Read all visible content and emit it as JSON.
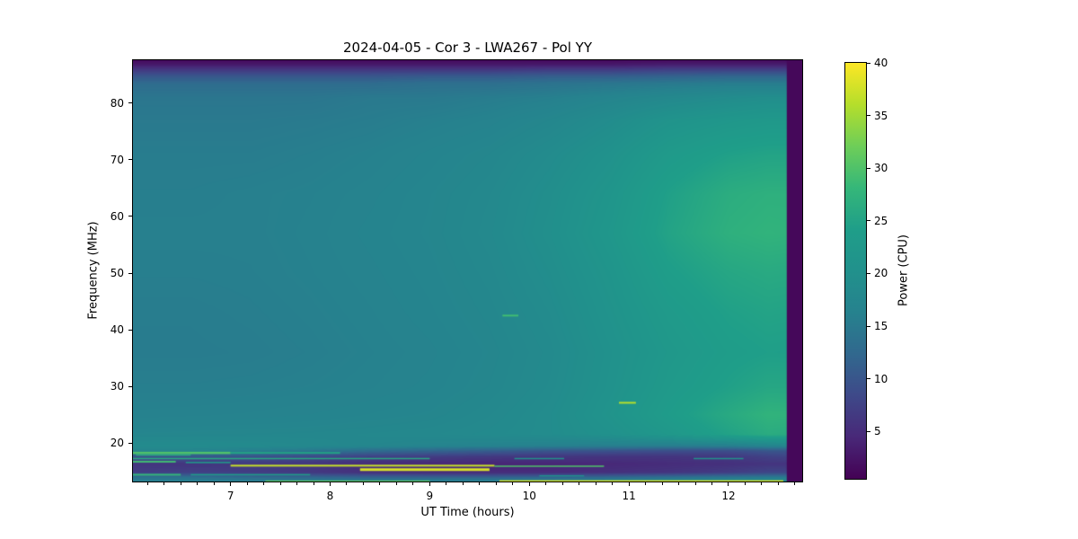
{
  "chart_data": {
    "type": "heatmap",
    "title": "2024-04-05 - Cor 3 - LWA267 - Pol YY",
    "xlabel": "UT Time (hours)",
    "ylabel": "Frequency (MHz)",
    "colorbar_label": "Power (CPU)",
    "colormap": "viridis",
    "vmin": 0.5,
    "vmax": 40,
    "x_range_hours": [
      6.02,
      12.74
    ],
    "y_range_mhz": [
      13.2,
      87.6
    ],
    "x_ticks": [
      7,
      8,
      9,
      10,
      11,
      12
    ],
    "x_minor_tick_interval_hours": 0.1667,
    "y_ticks": [
      20,
      30,
      40,
      50,
      60,
      70,
      80
    ],
    "colorbar_ticks": [
      5,
      10,
      15,
      20,
      25,
      30,
      35,
      40
    ],
    "legend": "none",
    "grid_lines": "off",
    "grid": {
      "t": [
        6.0,
        6.6,
        7.2,
        7.8,
        8.4,
        9.0,
        9.6,
        10.2,
        10.8,
        11.4,
        12.0,
        12.4,
        12.74
      ],
      "f": [
        87.6,
        86.8,
        86.0,
        84.8,
        83.5,
        81.0,
        77.0,
        71.0,
        64.0,
        57.0,
        50.0,
        43.0,
        36.0,
        30.0,
        25.0,
        21.5,
        19.5,
        18.6,
        17.6,
        16.3,
        14.8,
        13.9,
        13.2
      ],
      "values": [
        [
          1.5,
          1.5,
          1.5,
          1.5,
          1.5,
          1.5,
          1.5,
          1.5,
          1.5,
          1.5,
          1.5,
          1.5,
          1.5
        ],
        [
          3,
          3,
          3,
          3,
          3,
          3,
          3,
          3,
          3,
          3.5,
          3.5,
          3.5,
          3.5
        ],
        [
          6,
          6,
          6,
          6,
          6,
          6,
          6,
          6.5,
          6.5,
          7,
          7,
          7,
          7
        ],
        [
          10,
          10,
          10,
          10,
          10,
          10.5,
          10.5,
          11,
          11,
          11.5,
          12,
          12,
          12
        ],
        [
          13,
          13,
          13,
          13,
          13,
          13.5,
          13.5,
          14,
          14.5,
          15,
          15.5,
          15.5,
          15.5
        ],
        [
          14.5,
          14.5,
          14.5,
          14.5,
          15,
          15,
          15.5,
          16,
          17,
          18,
          19,
          19.5,
          19.5
        ],
        [
          15,
          15,
          15,
          15.2,
          15.5,
          16,
          16.5,
          17.5,
          19,
          21,
          22,
          22.5,
          22.5
        ],
        [
          15.5,
          15.5,
          15.5,
          15.8,
          16.2,
          16.8,
          17.5,
          18.8,
          20.5,
          23,
          24.5,
          25,
          25
        ],
        [
          15.8,
          15.8,
          16,
          16.2,
          16.6,
          17.2,
          18,
          19.5,
          21.5,
          24.5,
          26.5,
          27,
          27
        ],
        [
          16,
          16,
          16,
          16.3,
          16.8,
          17.3,
          18.2,
          19.8,
          22,
          25,
          27,
          27.5,
          27.3
        ],
        [
          15.8,
          15.8,
          15.9,
          16.2,
          16.6,
          17.1,
          17.9,
          19.3,
          21.3,
          24,
          25.5,
          26,
          25.8
        ],
        [
          15.5,
          15.5,
          15.7,
          16,
          16.4,
          16.9,
          17.6,
          18.8,
          20.8,
          23,
          24.5,
          25,
          24.8
        ],
        [
          15.4,
          15.4,
          15.5,
          15.8,
          16.2,
          16.6,
          17.3,
          18.4,
          20.3,
          22.3,
          23.8,
          24.3,
          24.2
        ],
        [
          15.8,
          15.8,
          15.9,
          16.1,
          16.4,
          16.8,
          17.5,
          18.6,
          20.5,
          22.8,
          24.5,
          25.5,
          25.5
        ],
        [
          16.3,
          16.4,
          16.5,
          16.7,
          17,
          17.3,
          18,
          19,
          21,
          23.5,
          26,
          27.5,
          27.3
        ],
        [
          17.3,
          17.4,
          17.5,
          17.6,
          17.8,
          18,
          18.4,
          19,
          20.3,
          22.3,
          24.8,
          26.3,
          26
        ],
        [
          18.8,
          18.8,
          18.5,
          18,
          17.5,
          17,
          16.6,
          16.2,
          15.8,
          15.6,
          16,
          17,
          17.5
        ],
        [
          17,
          17,
          16,
          14.5,
          13,
          12,
          11,
          10,
          9.5,
          9,
          9,
          10,
          10
        ],
        [
          10,
          10,
          9.5,
          8.5,
          7.5,
          7,
          6.5,
          6.2,
          6,
          6,
          6.5,
          7.5,
          8
        ],
        [
          6,
          6,
          6.5,
          6,
          5,
          4.5,
          4.2,
          4.2,
          4.5,
          5,
          5.5,
          6,
          6
        ],
        [
          7,
          7.5,
          7,
          6.5,
          5.5,
          5,
          5,
          5,
          5.5,
          6,
          7,
          8,
          8
        ],
        [
          14,
          14,
          13,
          12.5,
          12,
          12,
          12,
          12.5,
          13,
          14,
          15,
          15.5,
          15.5
        ],
        [
          16,
          16,
          16,
          16,
          16,
          16.2,
          16.5,
          16.8,
          17,
          17.3,
          17.7,
          18,
          18
        ]
      ]
    },
    "features": {
      "blank_column": {
        "t": [
          12.585,
          12.74
        ],
        "value": 1.2
      },
      "rfi_lines": [
        {
          "f": 18.25,
          "t0": 6.02,
          "t1": 7.0,
          "v": 30,
          "px": 2.5
        },
        {
          "f": 18.25,
          "t0": 7.0,
          "t1": 8.1,
          "v": 25,
          "px": 2
        },
        {
          "f": 17.9,
          "t0": 6.05,
          "t1": 6.6,
          "v": 27,
          "px": 1.5
        },
        {
          "f": 17.25,
          "t0": 6.02,
          "t1": 9.0,
          "v": 26,
          "px": 1.5
        },
        {
          "f": 17.25,
          "t0": 9.85,
          "t1": 10.35,
          "v": 21,
          "px": 1.5
        },
        {
          "f": 17.25,
          "t0": 11.65,
          "t1": 12.15,
          "v": 21,
          "px": 1.5
        },
        {
          "f": 16.7,
          "t0": 6.02,
          "t1": 6.45,
          "v": 29,
          "px": 2
        },
        {
          "f": 16.55,
          "t0": 6.55,
          "t1": 7.0,
          "v": 24,
          "px": 1.5
        },
        {
          "f": 16.0,
          "t0": 7.0,
          "t1": 9.65,
          "v": 37,
          "px": 2
        },
        {
          "f": 15.9,
          "t0": 9.65,
          "t1": 10.75,
          "v": 30,
          "px": 1.5
        },
        {
          "f": 15.3,
          "t0": 8.3,
          "t1": 9.6,
          "v": 38,
          "px": 3
        },
        {
          "f": 14.4,
          "t0": 6.02,
          "t1": 6.5,
          "v": 28,
          "px": 2
        },
        {
          "f": 14.4,
          "t0": 6.6,
          "t1": 7.8,
          "v": 24,
          "px": 1.5
        },
        {
          "f": 14.2,
          "t0": 10.1,
          "t1": 10.55,
          "v": 20,
          "px": 1.5
        },
        {
          "f": 13.25,
          "t0": 7.35,
          "t1": 9.0,
          "v": 31,
          "px": 1.5
        },
        {
          "f": 13.25,
          "t0": 9.7,
          "t1": 12.55,
          "v": 38,
          "px": 2
        },
        {
          "f": 42.5,
          "t0": 9.73,
          "t1": 9.89,
          "v": 29,
          "px": 2
        },
        {
          "f": 27.1,
          "t0": 10.9,
          "t1": 11.07,
          "v": 36,
          "px": 2
        }
      ]
    }
  }
}
